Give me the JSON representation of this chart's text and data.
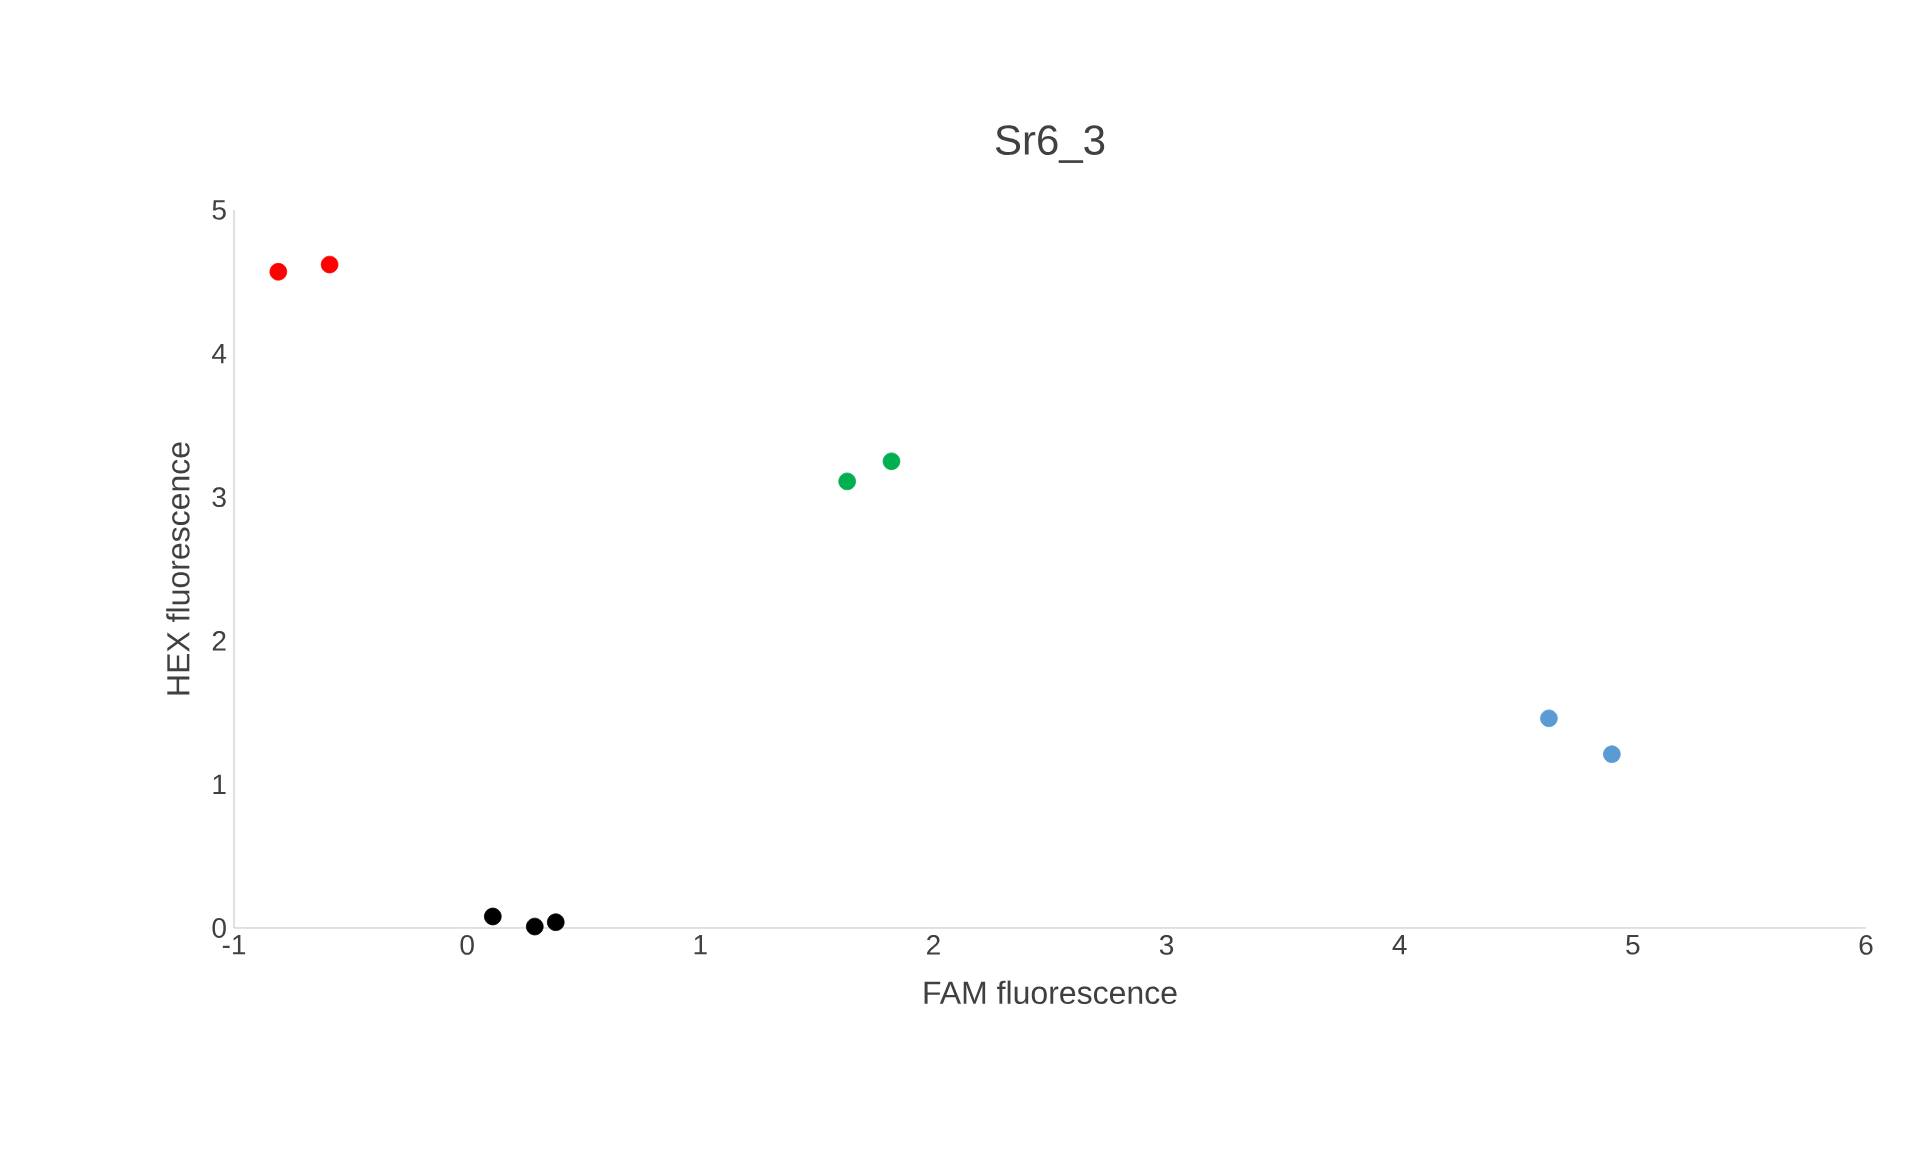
{
  "chart_data": {
    "type": "scatter",
    "title": "Sr6_3",
    "xlabel": "FAM fluorescence",
    "ylabel": "HEX fluorescence",
    "xlim": [
      -1,
      6
    ],
    "xticks": [
      -1,
      0,
      1,
      2,
      3,
      4,
      5,
      6
    ],
    "ylim": [
      0,
      5
    ],
    "yticks": [
      0,
      1,
      2,
      3,
      4,
      5
    ],
    "grid": false,
    "marker": "circle",
    "series": [
      {
        "color": "#ff0000",
        "x": [
          -0.81,
          -0.59
        ],
        "values": [
          4.57,
          4.62
        ]
      },
      {
        "color": "#00b050",
        "x": [
          1.63,
          1.82
        ],
        "values": [
          3.11,
          3.25
        ]
      },
      {
        "color": "#5b9bd5",
        "x": [
          4.64,
          4.91
        ],
        "values": [
          1.46,
          1.21
        ]
      },
      {
        "color": "#000000",
        "x": [
          0.11,
          0.29,
          0.38
        ],
        "values": [
          0.08,
          0.01,
          0.04
        ]
      }
    ]
  }
}
